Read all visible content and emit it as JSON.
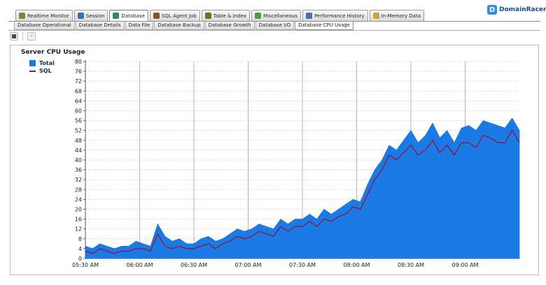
{
  "module_tabs": [
    {
      "label": "Realtime Monitor",
      "icon": "realtime-monitor-icon",
      "color": "#6a8f3a"
    },
    {
      "label": "Session",
      "icon": "session-icon",
      "color": "#3a6fb0"
    },
    {
      "label": "Database",
      "icon": "database-icon",
      "color": "#2e8b57",
      "active": true
    },
    {
      "label": "SQL Agent Job",
      "icon": "sql-agent-job-icon",
      "color": "#7a5a2a"
    },
    {
      "label": "Table & Index",
      "icon": "table-index-icon",
      "color": "#5a7a2a"
    },
    {
      "label": "Miscellaneous",
      "icon": "miscellaneous-icon",
      "color": "#4f9b3f"
    },
    {
      "label": "Performance History",
      "icon": "performance-history-icon",
      "color": "#4a6fa8"
    },
    {
      "label": "In-Memory Data",
      "icon": "in-memory-data-icon",
      "color": "#c8a63a"
    }
  ],
  "sub_tabs": [
    {
      "label": "Database Operational"
    },
    {
      "label": "Database Details"
    },
    {
      "label": "Data File"
    },
    {
      "label": "Database Backup"
    },
    {
      "label": "Database Growth"
    },
    {
      "label": "Database I/O"
    },
    {
      "label": "Database CPU Usage",
      "active": true
    }
  ],
  "logo": {
    "text": "DomainRacer"
  },
  "colors": {
    "total": "#1a7be6",
    "sql": "#8b1a4b",
    "grid": "#d7d7d7",
    "vline": "#b8b4aa"
  },
  "chart_data": {
    "type": "area",
    "title": "Server CPU Usage",
    "legend": [
      "Total",
      "SQL"
    ],
    "legend_position": "top-left",
    "ylim": [
      0,
      80
    ],
    "yticks": [
      0,
      4,
      8,
      12,
      16,
      20,
      24,
      28,
      32,
      36,
      40,
      44,
      48,
      52,
      56,
      60,
      64,
      68,
      72,
      76,
      80
    ],
    "xlim": [
      "05:30 AM",
      "09:30 AM"
    ],
    "xticks": [
      "05:30 AM",
      "06:00 AM",
      "06:30 AM",
      "07:00 AM",
      "07:30 AM",
      "08:00 AM",
      "08:30 AM",
      "09:00 AM"
    ],
    "grid": true,
    "series": [
      {
        "name": "Total",
        "minutes_from_0530": [
          0,
          4,
          8,
          12,
          16,
          20,
          24,
          28,
          32,
          36,
          40,
          44,
          48,
          52,
          56,
          60,
          64,
          68,
          72,
          76,
          80,
          84,
          88,
          92,
          96,
          100,
          104,
          108,
          112,
          116,
          120,
          124,
          128,
          132,
          136,
          140,
          144,
          148,
          152,
          156,
          160,
          164,
          168,
          172,
          176,
          180,
          184,
          188,
          192,
          196,
          200,
          204,
          208,
          212,
          216,
          220,
          224,
          228,
          232,
          236,
          240
        ],
        "values": [
          5,
          4,
          6,
          5,
          4,
          5,
          5,
          7,
          6,
          5,
          14,
          9,
          7,
          8,
          6,
          6,
          8,
          9,
          7,
          8,
          10,
          12,
          11,
          12,
          14,
          13,
          12,
          16,
          14,
          16,
          16,
          18,
          16,
          20,
          18,
          20,
          22,
          24,
          23,
          30,
          36,
          40,
          46,
          44,
          48,
          52,
          47,
          50,
          55,
          49,
          52,
          47,
          53,
          54,
          52,
          56,
          55,
          54,
          53,
          57,
          52
        ]
      },
      {
        "name": "SQL",
        "minutes_from_0530": [
          0,
          4,
          8,
          12,
          16,
          20,
          24,
          28,
          32,
          36,
          40,
          44,
          48,
          52,
          56,
          60,
          64,
          68,
          72,
          76,
          80,
          84,
          88,
          92,
          96,
          100,
          104,
          108,
          112,
          116,
          120,
          124,
          128,
          132,
          136,
          140,
          144,
          148,
          152,
          156,
          160,
          164,
          168,
          172,
          176,
          180,
          184,
          188,
          192,
          196,
          200,
          204,
          208,
          212,
          216,
          220,
          224,
          228,
          232,
          236,
          240
        ],
        "values": [
          3,
          2,
          4,
          3,
          2,
          3,
          3,
          4,
          4,
          3,
          10,
          5,
          4,
          5,
          4,
          4,
          5,
          6,
          4,
          6,
          7,
          9,
          8,
          9,
          11,
          10,
          9,
          13,
          11,
          13,
          13,
          15,
          13,
          16,
          15,
          17,
          18,
          21,
          20,
          26,
          32,
          36,
          42,
          40,
          43,
          46,
          42,
          44,
          48,
          43,
          46,
          42,
          47,
          47,
          45,
          50,
          49,
          47,
          47,
          52,
          47
        ]
      }
    ]
  }
}
